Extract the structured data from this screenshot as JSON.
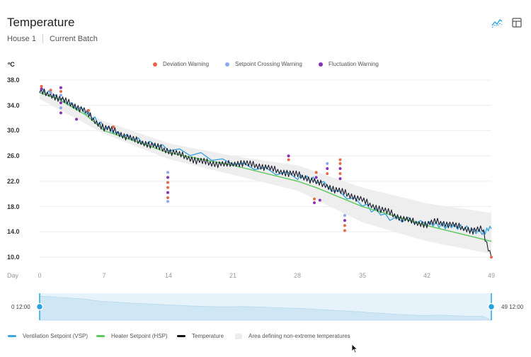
{
  "header": {
    "title": "Temperature",
    "crumbs": [
      "House 1",
      "Current Batch"
    ]
  },
  "toolbar": {
    "chart_icon": "line-chart-icon",
    "table_icon": "table-icon",
    "accent": "#29a3e0"
  },
  "chart_data": {
    "type": "line",
    "title": "Temperature",
    "ylabel": "ºC",
    "xlabel": "Day",
    "ylim": [
      10,
      38
    ],
    "xlim": [
      0,
      49
    ],
    "y_ticks": [
      "38.0",
      "34.0",
      "30.0",
      "26.0",
      "22.0",
      "18.0",
      "14.0",
      "10.0"
    ],
    "x_ticks": [
      "0",
      "7",
      "14",
      "21",
      "28",
      "35",
      "42",
      "49"
    ],
    "grid": true,
    "legend_top": [
      {
        "name": "Deviation Warning",
        "color": "#e8694a"
      },
      {
        "name": "Setpoint Crossing Warning",
        "color": "#8fa6f0"
      },
      {
        "name": "Fluctuation Warning",
        "color": "#8b2fb8"
      }
    ],
    "legend_bottom": [
      {
        "name": "Ventilation Setpoint (VSP)",
        "color": "#3ea6e0"
      },
      {
        "name": "Heater Setpoint (HSP)",
        "color": "#5cc95c"
      },
      {
        "name": "Temperature",
        "color": "#111111"
      },
      {
        "name": "Area defining non-extreme temperatures",
        "color": "#ececec"
      }
    ],
    "series": [
      {
        "name": "Heater Setpoint (HSP)",
        "x": [
          0,
          2,
          5,
          7,
          10,
          14,
          21,
          28,
          30,
          35,
          42,
          49
        ],
        "values": [
          36.0,
          35.0,
          32.5,
          30.0,
          28.5,
          26.5,
          24.5,
          22.0,
          21.0,
          18.0,
          15.0,
          12.5
        ]
      },
      {
        "name": "Ventilation Setpoint (VSP)",
        "x": [
          0,
          2,
          5,
          7,
          10,
          14,
          21,
          28,
          30,
          35,
          38,
          42,
          44,
          46,
          48,
          49
        ],
        "values": [
          36.3,
          35.3,
          33.0,
          30.4,
          28.9,
          27.0,
          25.0,
          22.8,
          22.0,
          18.5,
          16.0,
          15.5,
          15.0,
          14.5,
          14.0,
          14.5
        ]
      },
      {
        "name": "Temperature",
        "x": [
          0,
          1,
          2,
          3,
          4,
          5,
          6,
          7,
          8,
          9,
          10,
          11,
          12,
          13,
          14,
          15,
          16,
          17,
          18,
          19,
          20,
          21,
          22,
          23,
          24,
          25,
          26,
          27,
          28,
          29,
          30,
          31,
          32,
          33,
          34,
          35,
          36,
          37,
          38,
          39,
          40,
          41,
          42,
          43,
          44,
          45,
          46,
          47,
          48,
          49
        ],
        "values": [
          36.2,
          35.8,
          35.2,
          34.5,
          33.8,
          33.0,
          31.5,
          30.5,
          30.0,
          29.3,
          28.7,
          28.2,
          27.8,
          27.3,
          26.8,
          26.3,
          25.8,
          25.3,
          25.0,
          24.8,
          24.6,
          24.8,
          24.9,
          24.6,
          24.4,
          24.0,
          23.6,
          23.3,
          23.0,
          22.5,
          21.8,
          21.4,
          20.7,
          20.2,
          19.6,
          19.0,
          18.2,
          17.6,
          17.0,
          16.3,
          15.8,
          15.4,
          15.2,
          15.6,
          15.3,
          15.0,
          14.6,
          14.2,
          14.4,
          10.0
        ]
      }
    ],
    "band": {
      "x": [
        0,
        7,
        14,
        21,
        28,
        35,
        42,
        49
      ],
      "upper": [
        37.0,
        31.5,
        28.0,
        26.0,
        24.5,
        21.0,
        18.5,
        17.0
      ],
      "lower": [
        35.0,
        29.5,
        25.5,
        23.0,
        20.5,
        15.5,
        12.5,
        10.5
      ]
    },
    "warnings": [
      {
        "day": 0.2,
        "values": [
          37.0,
          36.6
        ],
        "types": [
          0,
          2
        ]
      },
      {
        "day": 1.2,
        "values": [
          36.4,
          36.0
        ],
        "types": [
          0,
          1
        ]
      },
      {
        "day": 2.3,
        "values": [
          36.8,
          36.2,
          35.6,
          34.4,
          33.6,
          32.8
        ],
        "types": [
          2,
          0,
          1,
          2,
          1,
          2
        ]
      },
      {
        "day": 4.0,
        "values": [
          31.8
        ],
        "types": [
          2
        ]
      },
      {
        "day": 5.3,
        "values": [
          33.2
        ],
        "types": [
          0
        ]
      },
      {
        "day": 8.0,
        "values": [
          30.6
        ],
        "types": [
          0
        ]
      },
      {
        "day": 13.9,
        "values": [
          23.4,
          22.6,
          21.8,
          21.0,
          20.2,
          19.4,
          18.8
        ],
        "types": [
          1,
          2,
          0,
          0,
          2,
          0,
          1
        ]
      },
      {
        "day": 27.0,
        "values": [
          26.0,
          25.4
        ],
        "types": [
          2,
          0
        ]
      },
      {
        "day": 30.0,
        "values": [
          23.4,
          22.6
        ],
        "types": [
          0,
          2
        ]
      },
      {
        "day": 31.2,
        "values": [
          24.8,
          24.0,
          23.2
        ],
        "types": [
          1,
          2,
          0
        ]
      },
      {
        "day": 32.6,
        "values": [
          25.4,
          24.8,
          24.0,
          23.2,
          22.4
        ],
        "types": [
          0,
          0,
          2,
          0,
          2
        ]
      },
      {
        "day": 29.8,
        "values": [
          19.2,
          18.6
        ],
        "types": [
          0,
          2
        ]
      },
      {
        "day": 30.4,
        "values": [
          19.0
        ],
        "types": [
          2
        ]
      },
      {
        "day": 33.1,
        "values": [
          16.6,
          15.8,
          15.0,
          14.2
        ],
        "types": [
          1,
          2,
          0,
          0
        ]
      },
      {
        "day": 49.0,
        "values": [
          10.0
        ],
        "types": [
          0
        ]
      }
    ]
  },
  "navigator": {
    "left_label": "0  12:00",
    "right_label": "49  12:00"
  }
}
